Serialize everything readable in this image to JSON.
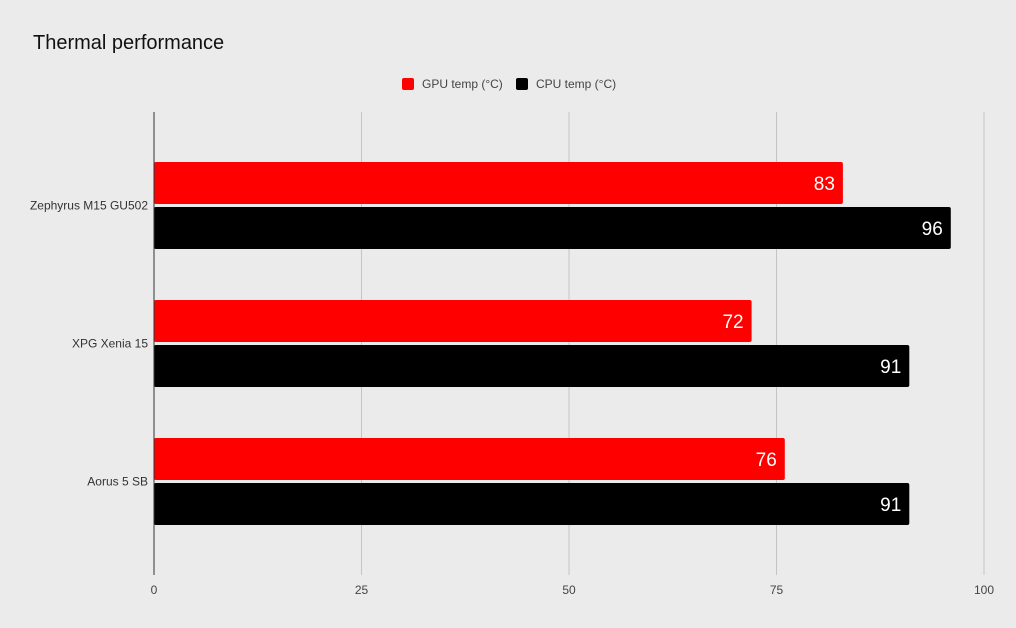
{
  "chart_data": {
    "type": "bar",
    "orientation": "horizontal",
    "title": "Thermal performance",
    "categories": [
      "Zephyrus M15 GU502",
      "XPG Xenia 15",
      "Aorus 5 SB"
    ],
    "series": [
      {
        "name": "GPU temp (°C)",
        "values": [
          83,
          72,
          76
        ],
        "color": "#ff0000"
      },
      {
        "name": "CPU temp (°C)",
        "values": [
          96,
          91,
          91
        ],
        "color": "#000000"
      }
    ],
    "xlim": [
      0,
      100
    ],
    "xticks": [
      0,
      25,
      50,
      75,
      100
    ],
    "grid": true,
    "legend_position": "top-center",
    "data_labels": true
  }
}
